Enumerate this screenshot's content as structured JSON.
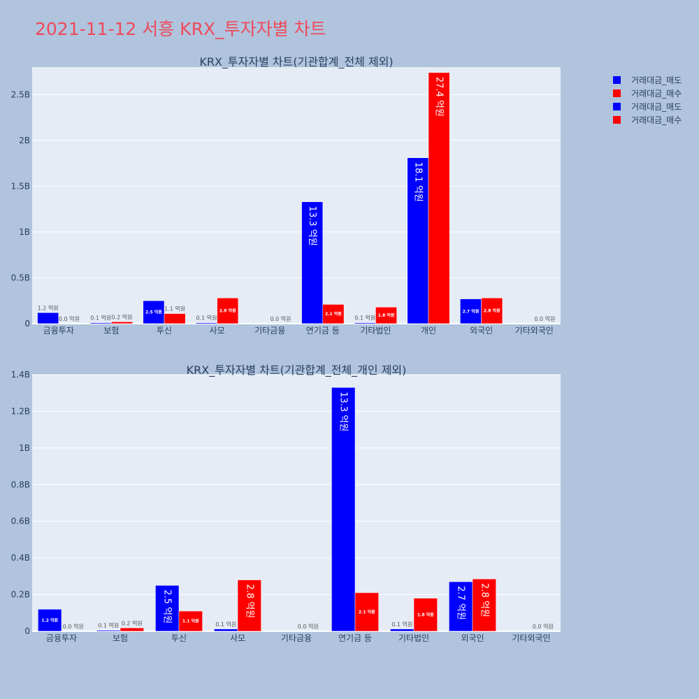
{
  "title": "2021-11-12 서흥 KRX_투자자별 차트",
  "legend": [
    {
      "label": "거래대금_매도",
      "color": "#0000ff"
    },
    {
      "label": "거래대금_매수",
      "color": "#ff0000"
    },
    {
      "label": "거래대금_매도",
      "color": "#0000ff"
    },
    {
      "label": "거래대금_매수",
      "color": "#ff0000"
    }
  ],
  "chart_data": [
    {
      "type": "bar",
      "title": "KRX_투자자별 차트(기관합계_전체 제외)",
      "categories": [
        "금융투자",
        "보험",
        "투신",
        "사모",
        "기타금융",
        "연기금 등",
        "기타법인",
        "개인",
        "외국인",
        "기타외국인"
      ],
      "ylim": [
        0,
        2.8
      ],
      "yticks": [
        0,
        0.5,
        1,
        1.5,
        2,
        2.5
      ],
      "ytick_labels": [
        "0",
        "0.5B",
        "1B",
        "1.5B",
        "2B",
        "2.5B"
      ],
      "grid": true,
      "series": [
        {
          "name": "거래대금_매도",
          "color": "#0000ff",
          "values": [
            0.12,
            0.01,
            0.25,
            0.01,
            0,
            1.33,
            0.01,
            1.81,
            0.27,
            0
          ],
          "labels": [
            "1.2 억원",
            "0.1 억원",
            "2.5 억원",
            "0.1 억원",
            "",
            "13.3 억원",
            "0.1 억원",
            "18.1 억원",
            "2.7 억원",
            ""
          ]
        },
        {
          "name": "거래대금_매수",
          "color": "#ff0000",
          "values": [
            0,
            0.02,
            0.11,
            0.28,
            0,
            0.21,
            0.18,
            2.74,
            0.28,
            0
          ],
          "labels": [
            "0.0 억원",
            "0.2 억원",
            "1.1 억원",
            "2.8 억원",
            "0.0 억원",
            "2.1 억원",
            "1.8 억원",
            "27.4 억원",
            "2.8 억원",
            "0.0 억원"
          ]
        }
      ]
    },
    {
      "type": "bar",
      "title": "KRX_투자자별 차트(기관합계_전체_개인 제외)",
      "categories": [
        "금융투자",
        "보험",
        "투신",
        "사모",
        "기타금융",
        "연기금 등",
        "기타법인",
        "외국인",
        "기타외국인"
      ],
      "ylim": [
        0,
        1.4
      ],
      "yticks": [
        0,
        0.2,
        0.4,
        0.6,
        0.8,
        1,
        1.2,
        1.4
      ],
      "ytick_labels": [
        "0",
        "0.2B",
        "0.4B",
        "0.6B",
        "0.8B",
        "1B",
        "1.2B",
        "1.4B"
      ],
      "grid": true,
      "series": [
        {
          "name": "거래대금_매도",
          "color": "#0000ff",
          "values": [
            0.12,
            0.005,
            0.25,
            0.012,
            0,
            1.33,
            0.012,
            0.27,
            0
          ],
          "labels": [
            "1.2 억원",
            "0.1 억원",
            "2.5 억원",
            "0.1 억원",
            "",
            "13.3 억원",
            "0.1 억원",
            "2.7 억원",
            ""
          ]
        },
        {
          "name": "거래대금_매수",
          "color": "#ff0000",
          "values": [
            0,
            0.018,
            0.11,
            0.28,
            0,
            0.21,
            0.18,
            0.285,
            0
          ],
          "labels": [
            "0.0 억원",
            "0.2 억원",
            "1.1 억원",
            "2.8 억원",
            "0.0 억원",
            "2.1 억원",
            "1.8 억원",
            "2.8 억원",
            "0.0 억원"
          ]
        }
      ]
    }
  ]
}
